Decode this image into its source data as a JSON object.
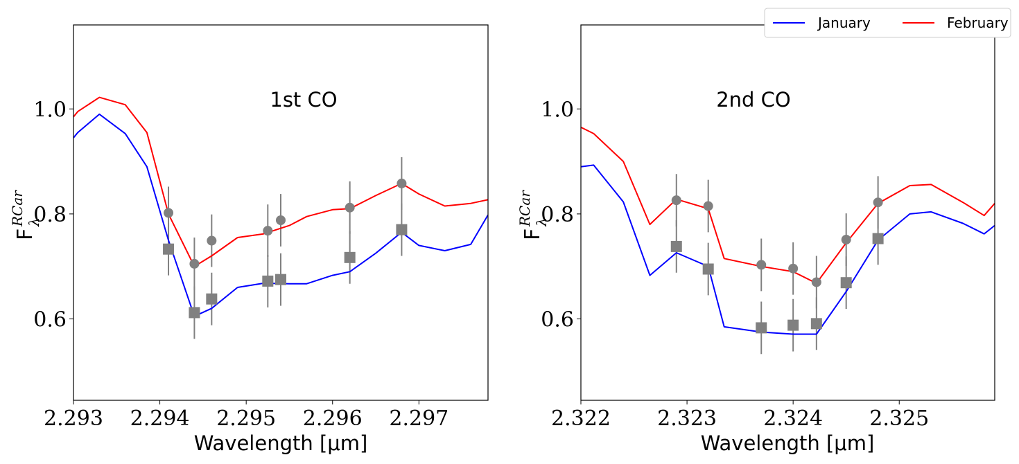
{
  "legend": {
    "entries": [
      {
        "label": "January",
        "color": "#0000ff"
      },
      {
        "label": "February",
        "color": "#ff0000"
      }
    ]
  },
  "chart_data": [
    {
      "type": "line",
      "annotation": "1st CO",
      "xlabel": "Wavelength [μm]",
      "ylabel_main": "F",
      "ylabel_sub": "λ",
      "ylabel_sup": "RCar",
      "xlim": [
        2.293,
        2.2978
      ],
      "ylim": [
        0.445,
        1.16
      ],
      "xticks": [
        2.293,
        2.294,
        2.295,
        2.296,
        2.297
      ],
      "xtick_labels": [
        "2.293",
        "2.294",
        "2.295",
        "2.296",
        "2.297"
      ],
      "yticks": [
        0.6,
        0.8,
        1.0
      ],
      "ytick_labels": [
        "0.6",
        "0.8",
        "1.0"
      ],
      "series": [
        {
          "name": "January",
          "color": "#0000ff",
          "x": [
            2.293,
            2.29305,
            2.2933,
            2.2936,
            2.29385,
            2.2941,
            2.2944,
            2.2946,
            2.2949,
            2.2952,
            2.2955,
            2.2957,
            2.296,
            2.2962,
            2.2965,
            2.2968,
            2.297,
            2.2973,
            2.2976,
            2.2978
          ],
          "y": [
            0.945,
            0.955,
            0.99,
            0.953,
            0.89,
            0.75,
            0.605,
            0.62,
            0.66,
            0.668,
            0.667,
            0.667,
            0.683,
            0.69,
            0.725,
            0.765,
            0.74,
            0.73,
            0.742,
            0.798
          ]
        },
        {
          "name": "February",
          "color": "#ff0000",
          "x": [
            2.293,
            2.29305,
            2.2933,
            2.2936,
            2.29385,
            2.2941,
            2.2944,
            2.2946,
            2.2949,
            2.2952,
            2.2955,
            2.2957,
            2.296,
            2.2962,
            2.2965,
            2.2968,
            2.297,
            2.2973,
            2.2976,
            2.2978
          ],
          "y": [
            0.985,
            0.995,
            1.022,
            1.008,
            0.955,
            0.8,
            0.7,
            0.72,
            0.755,
            0.762,
            0.778,
            0.795,
            0.808,
            0.81,
            0.835,
            0.858,
            0.838,
            0.815,
            0.82,
            0.827
          ]
        }
      ],
      "circles": {
        "x": [
          2.2941,
          2.2944,
          2.2946,
          2.29525,
          2.2954,
          2.2962,
          2.2968
        ],
        "y": [
          0.802,
          0.705,
          0.749,
          0.768,
          0.788,
          0.812,
          0.858
        ],
        "err": 0.05
      },
      "squares": {
        "x": [
          2.2941,
          2.2944,
          2.2946,
          2.29525,
          2.2954,
          2.2962,
          2.2968
        ],
        "y": [
          0.733,
          0.612,
          0.638,
          0.672,
          0.675,
          0.717,
          0.77
        ],
        "err": 0.05
      }
    },
    {
      "type": "line",
      "annotation": "2nd CO",
      "xlabel": "Wavelength [μm]",
      "ylabel_main": "F",
      "ylabel_sub": "λ",
      "ylabel_sup": "RCar",
      "xlim": [
        2.322,
        2.3259
      ],
      "ylim": [
        0.445,
        1.16
      ],
      "xticks": [
        2.322,
        2.323,
        2.324,
        2.325
      ],
      "xtick_labels": [
        "2.322",
        "2.323",
        "2.324",
        "2.325"
      ],
      "yticks": [
        0.6,
        0.8,
        1.0
      ],
      "ytick_labels": [
        "0.6",
        "0.8",
        "1.0"
      ],
      "series": [
        {
          "name": "January",
          "color": "#0000ff",
          "x": [
            2.322,
            2.32212,
            2.3224,
            2.32265,
            2.3229,
            2.3232,
            2.32335,
            2.3237,
            2.324,
            2.32422,
            2.3245,
            2.3248,
            2.3251,
            2.3253,
            2.3256,
            2.3258,
            2.3259
          ],
          "y": [
            0.89,
            0.893,
            0.823,
            0.683,
            0.726,
            0.7,
            0.585,
            0.575,
            0.571,
            0.571,
            0.652,
            0.75,
            0.8,
            0.804,
            0.782,
            0.762,
            0.778
          ]
        },
        {
          "name": "February",
          "color": "#ff0000",
          "x": [
            2.322,
            2.32212,
            2.3224,
            2.32265,
            2.3229,
            2.3232,
            2.32335,
            2.3237,
            2.324,
            2.32422,
            2.3245,
            2.3248,
            2.3251,
            2.3253,
            2.3256,
            2.3258,
            2.3259
          ],
          "y": [
            0.965,
            0.953,
            0.9,
            0.78,
            0.828,
            0.81,
            0.715,
            0.7,
            0.69,
            0.668,
            0.745,
            0.82,
            0.854,
            0.856,
            0.822,
            0.797,
            0.82
          ]
        }
      ],
      "circles": {
        "x": [
          2.3229,
          2.3232,
          2.3237,
          2.324,
          2.32422,
          2.3245,
          2.3248
        ],
        "y": [
          0.826,
          0.815,
          0.703,
          0.696,
          0.67,
          0.751,
          0.822
        ],
        "err": 0.05
      },
      "squares": {
        "x": [
          2.3229,
          2.3232,
          2.3237,
          2.324,
          2.32422,
          2.3245,
          2.3248
        ],
        "y": [
          0.738,
          0.695,
          0.583,
          0.588,
          0.591,
          0.669,
          0.753
        ],
        "err": 0.05
      }
    }
  ]
}
